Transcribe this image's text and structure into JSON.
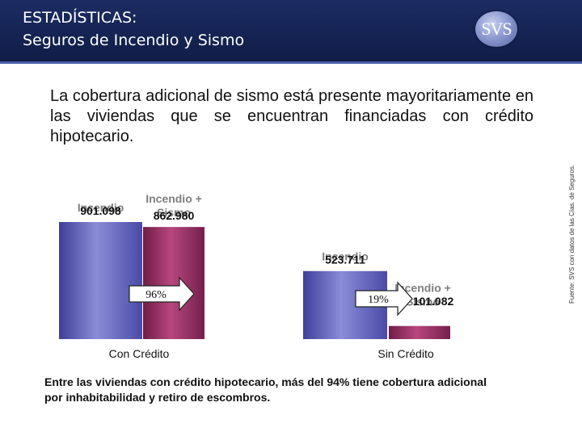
{
  "header": {
    "title_line1": "ESTADÍSTICAS:",
    "title_line2": "Seguros de Incendio y Sismo",
    "logo_text": "SVS"
  },
  "intro_text": "La cobertura adicional de sismo está presente mayoritariamente en las viviendas que se encuentran financiadas con crédito hipotecario.",
  "source_note": "Fuente: SVS con datos de las Cías. de Seguros.",
  "footer_note": "Entre las viviendas con crédito hipotecario, más del 94% tiene cobertura adicional por inhabitabilidad y retiro de escombros.",
  "colors": {
    "header_bg": "#14214f",
    "incendio_bar": "#7577c8",
    "sismo_bar": "#9d2f62",
    "label_gray": "#7e7e7e",
    "value_black": "#111111"
  },
  "chart_data": {
    "type": "bar",
    "groups": [
      "Con Crédito",
      "Sin Crédito"
    ],
    "series": [
      {
        "name": "Incendio",
        "values": [
          901098,
          523711
        ],
        "labels": [
          "901.098",
          "523.711"
        ]
      },
      {
        "name": "Incendio + Sismo",
        "values": [
          862980,
          101082
        ],
        "labels": [
          "862.980",
          "101.082"
        ]
      }
    ],
    "arrows": [
      {
        "group": "Con Crédito",
        "text": "96%"
      },
      {
        "group": "Sin Crédito",
        "text": "19%"
      }
    ]
  }
}
